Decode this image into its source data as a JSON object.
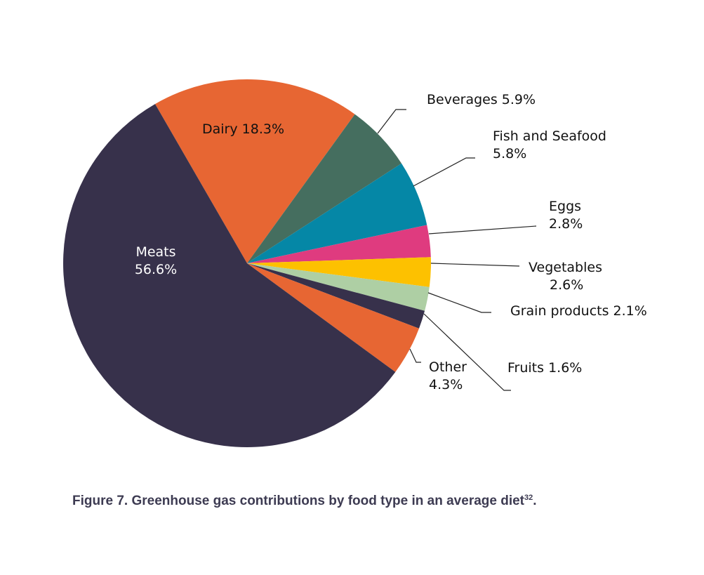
{
  "chart_data": {
    "type": "pie",
    "slices": [
      {
        "label": "Dairy",
        "display_lines": [
          "Dairy 18.3%"
        ],
        "value": 18.3,
        "color": "#E76633"
      },
      {
        "label": "Beverages",
        "display_lines": [
          "Beverages 5.9%"
        ],
        "value": 5.9,
        "color": "#456E5F"
      },
      {
        "label": "Fish and Seafood",
        "display_lines": [
          "Fish and Seafood",
          "5.8%"
        ],
        "value": 5.8,
        "color": "#0587A6"
      },
      {
        "label": "Eggs",
        "display_lines": [
          "Eggs",
          "2.8%"
        ],
        "value": 2.8,
        "color": "#DF3B7F"
      },
      {
        "label": "Vegetables",
        "display_lines": [
          "Vegetables",
          "2.6%"
        ],
        "value": 2.6,
        "color": "#FDC100"
      },
      {
        "label": "Grain products",
        "display_lines": [
          "Grain products 2.1%"
        ],
        "value": 2.1,
        "color": "#AECFA4"
      },
      {
        "label": "Fruits",
        "display_lines": [
          "Fruits 1.6%"
        ],
        "value": 1.6,
        "color": "#37314B"
      },
      {
        "label": "Other",
        "display_lines": [
          "Other",
          "4.3%"
        ],
        "value": 4.3,
        "color": "#E76633"
      },
      {
        "label": "Meats",
        "display_lines": [
          "Meats",
          "56.6%"
        ],
        "value": 56.6,
        "color": "#37314B"
      }
    ]
  },
  "caption": {
    "text": "Figure 7. Greenhouse gas contributions by food type in an average diet",
    "ref": "32",
    "tail": "."
  }
}
